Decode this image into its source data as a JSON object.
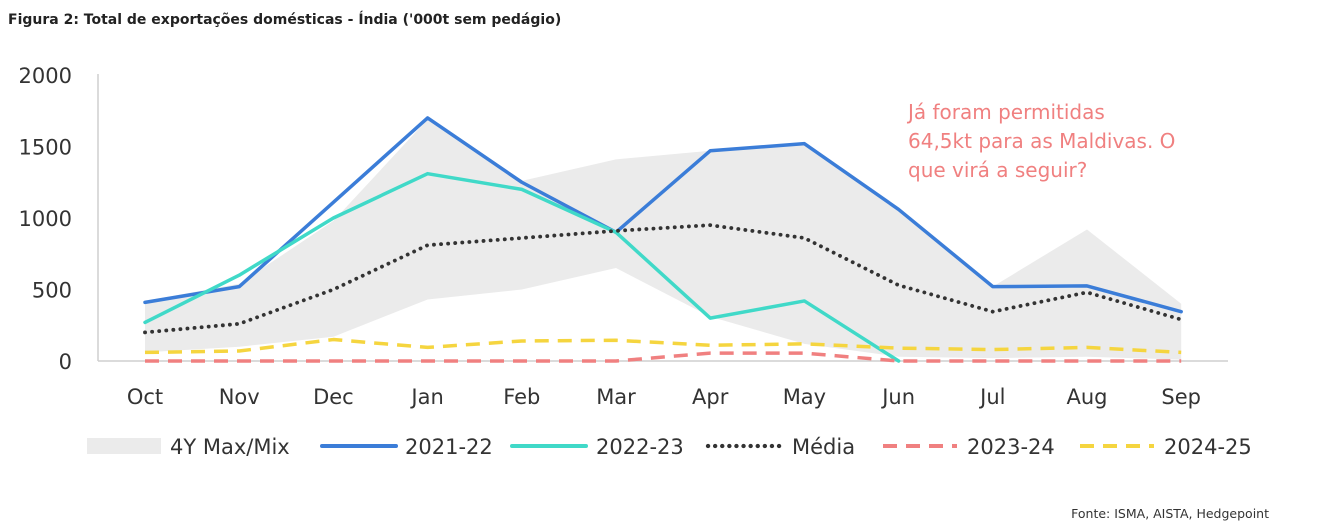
{
  "figure_title": "Figura 2: Total de exportações domésticas - Índia ('000t sem pedágio)",
  "source": "Fonte: ISMA, AISTA, Hedgepoint",
  "colors": {
    "band": "#ebebeb",
    "s2122": "#3b7dd8",
    "s2223": "#40d9c8",
    "media": "#333333",
    "s2324": "#f08080",
    "s2425": "#f5d53f",
    "annotation": "#f08080"
  },
  "chart_data": {
    "type": "line",
    "categories": [
      "Oct",
      "Nov",
      "Dec",
      "Jan",
      "Feb",
      "Mar",
      "Apr",
      "May",
      "Jun",
      "Jul",
      "Aug",
      "Sep"
    ],
    "ylim": [
      0,
      2000
    ],
    "yticks": [
      "0",
      "500",
      "1000",
      "1500",
      "2000"
    ],
    "grid": false,
    "legend_position": "bottom",
    "band": {
      "name": "4Y Max/Mix",
      "max": [
        420,
        540,
        980,
        1690,
        1260,
        1410,
        1470,
        1520,
        1060,
        520,
        920,
        400
      ],
      "min": [
        60,
        100,
        170,
        430,
        500,
        650,
        310,
        120,
        30,
        20,
        30,
        10
      ]
    },
    "series": [
      {
        "name": "2021-22",
        "key": "s2122",
        "style": "solid",
        "values": [
          410,
          520,
          1110,
          1700,
          1250,
          900,
          1470,
          1520,
          1060,
          520,
          525,
          345
        ]
      },
      {
        "name": "2022-23",
        "key": "s2223",
        "style": "solid",
        "values": [
          270,
          600,
          1000,
          1310,
          1200,
          900,
          300,
          420,
          0,
          null,
          null,
          null
        ]
      },
      {
        "name": "Média",
        "key": "media",
        "style": "dotted",
        "values": [
          200,
          260,
          500,
          810,
          860,
          910,
          950,
          860,
          530,
          345,
          480,
          290
        ]
      },
      {
        "name": "2023-24",
        "key": "s2324",
        "style": "dashed",
        "values": [
          0,
          0,
          0,
          0,
          0,
          0,
          55,
          55,
          0,
          0,
          0,
          0
        ]
      },
      {
        "name": "2024-25",
        "key": "s2425",
        "style": "dashed",
        "values": [
          60,
          70,
          150,
          95,
          140,
          145,
          110,
          120,
          90,
          80,
          95,
          60
        ]
      }
    ],
    "annotation": [
      "Já foram permitidas",
      "64,5kt para as Maldivas. O",
      "que virá a seguir?"
    ]
  }
}
